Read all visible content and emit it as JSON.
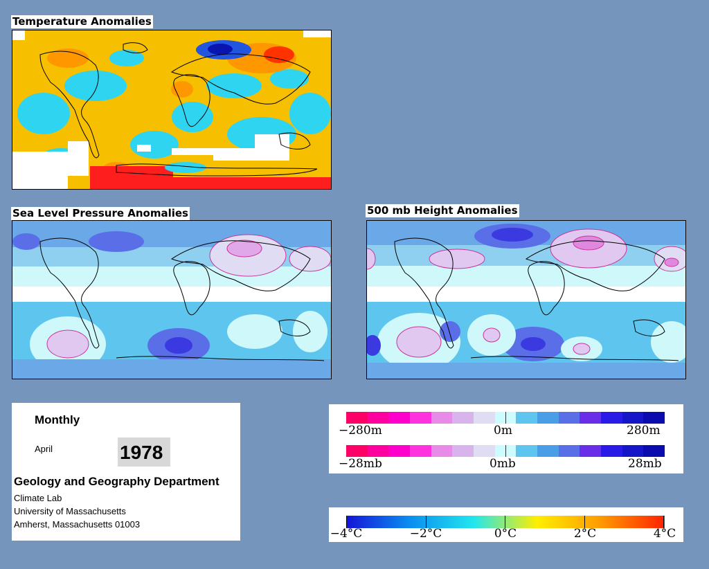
{
  "maps": {
    "temperature": {
      "title": "Temperature Anomalies"
    },
    "slp": {
      "title": "Sea Level Pressure Anomalies"
    },
    "height500": {
      "title": "500 mb Height Anomalies"
    }
  },
  "info": {
    "period": "Monthly",
    "month": "April",
    "year": "1978",
    "department": "Geology and Geography Department",
    "lab": "Climate Lab",
    "university": "University of Massachusetts",
    "address": "Amherst, Massachusetts 01003"
  },
  "legend_height": {
    "min_label": "−280m",
    "mid_label": "0m",
    "max_label": "280m",
    "colors": [
      "#ff0066",
      "#ff00a0",
      "#ff00cc",
      "#ff33dd",
      "#e88be8",
      "#d8b4ec",
      "#e0dcf4",
      "#ccfcff",
      "#5ec6ee",
      "#4a9ee6",
      "#5a6ee8",
      "#6a2ee8",
      "#2a1ae8",
      "#1616c8",
      "#0c0cae"
    ]
  },
  "legend_pressure": {
    "min_label": "−28mb",
    "mid_label": "0mb",
    "max_label": "28mb",
    "colors": [
      "#ff0066",
      "#ff00a0",
      "#ff00cc",
      "#ff33dd",
      "#e88be8",
      "#d8b4ec",
      "#e0dcf4",
      "#ccfcff",
      "#5ec6ee",
      "#4a9ee6",
      "#5a6ee8",
      "#6a2ee8",
      "#2a1ae8",
      "#1616c8",
      "#0c0cae"
    ]
  },
  "legend_temp": {
    "labels": [
      "−4°C",
      "−2°C",
      "0°C",
      "2°C",
      "4°C"
    ],
    "gradient": [
      "#1414d8",
      "#0a8ef0",
      "#22e6ee",
      "#ffee00",
      "#ff9a00",
      "#ff2200"
    ]
  }
}
